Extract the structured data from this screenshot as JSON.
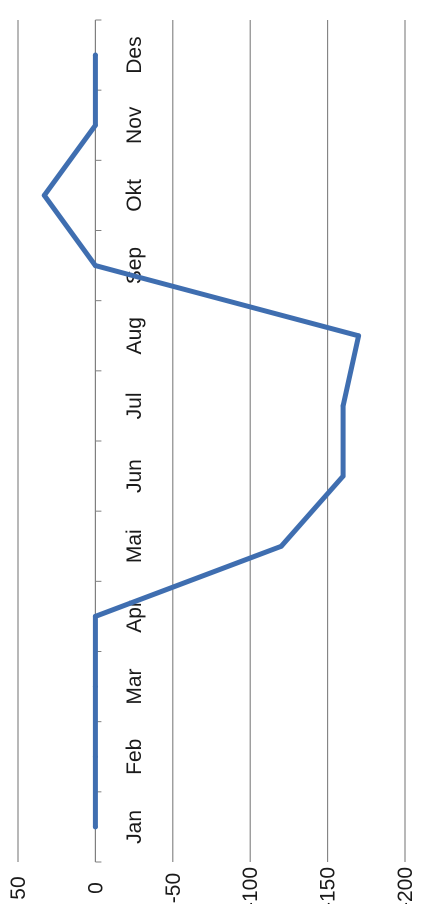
{
  "chart_data": {
    "type": "line",
    "orientation": "rotated-90",
    "categories": [
      "Jan",
      "Feb",
      "Mar",
      "Apr",
      "Mai",
      "Jun",
      "Jul",
      "Aug",
      "Sep",
      "Okt",
      "Nov",
      "Des"
    ],
    "series": [
      {
        "values": [
          0,
          0,
          0,
          0,
          -120,
          -160,
          -160,
          -170,
          0,
          33,
          0,
          0
        ]
      }
    ],
    "ylim": [
      -200,
      50
    ],
    "yticks": [
      50,
      0,
      -50,
      -100,
      -150,
      -200
    ],
    "grid": true,
    "legend": "none",
    "colors": {
      "line": "#3f6eb0",
      "grid": "#7f7f7f",
      "axis": "#7f7f7f"
    }
  }
}
